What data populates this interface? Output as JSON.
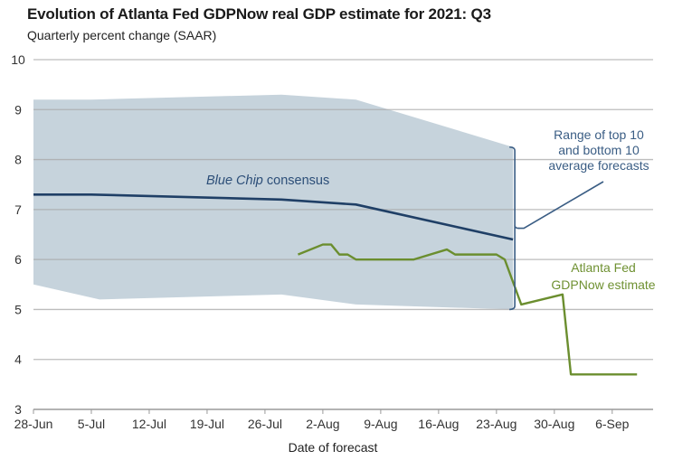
{
  "chart_data": {
    "type": "line",
    "title": "Evolution of Atlanta Fed GDPNow real GDP estimate for 2021: Q3",
    "subtitle": "Quarterly percent change (SAAR)",
    "xlabel": "Date of forecast",
    "ylabel": "",
    "ylim": [
      3,
      10
    ],
    "yticks": [
      3,
      4,
      5,
      6,
      7,
      8,
      9,
      10
    ],
    "xlim_days": [
      0,
      75
    ],
    "xticks": [
      {
        "label": "28-Jun",
        "day": 0
      },
      {
        "label": "5-Jul",
        "day": 7
      },
      {
        "label": "12-Jul",
        "day": 14
      },
      {
        "label": "19-Jul",
        "day": 21
      },
      {
        "label": "26-Jul",
        "day": 28
      },
      {
        "label": "2-Aug",
        "day": 35
      },
      {
        "label": "9-Aug",
        "day": 42
      },
      {
        "label": "16-Aug",
        "day": 49
      },
      {
        "label": "23-Aug",
        "day": 56
      },
      {
        "label": "30-Aug",
        "day": 63
      },
      {
        "label": "6-Sep",
        "day": 70
      }
    ],
    "grid": true,
    "x_unit_note": "day = days since 28-Jun-2021",
    "band": {
      "name": "Range of top 10 and bottom 10 average forecasts",
      "color": "#c6d3dc",
      "upper": [
        {
          "day": 0,
          "value": 9.2
        },
        {
          "day": 7,
          "value": 9.2
        },
        {
          "day": 30,
          "value": 9.3
        },
        {
          "day": 39,
          "value": 9.2
        },
        {
          "day": 58,
          "value": 8.25
        }
      ],
      "lower": [
        {
          "day": 0,
          "value": 5.5
        },
        {
          "day": 8,
          "value": 5.2
        },
        {
          "day": 30,
          "value": 5.3
        },
        {
          "day": 39,
          "value": 5.1
        },
        {
          "day": 58,
          "value": 5.0
        }
      ]
    },
    "series": [
      {
        "name": "Blue Chip consensus",
        "color": "#1f3f66",
        "points": [
          {
            "day": 0,
            "value": 7.3
          },
          {
            "day": 7,
            "value": 7.3
          },
          {
            "day": 30,
            "value": 7.2
          },
          {
            "day": 39,
            "value": 7.1
          },
          {
            "day": 58,
            "value": 6.4
          }
        ]
      },
      {
        "name": "Atlanta Fed GDPNow estimate",
        "color": "#6b8e2f",
        "points": [
          {
            "day": 32,
            "value": 6.1
          },
          {
            "day": 35,
            "value": 6.3
          },
          {
            "day": 36,
            "value": 6.3
          },
          {
            "day": 37,
            "value": 6.1
          },
          {
            "day": 38,
            "value": 6.1
          },
          {
            "day": 39,
            "value": 6.0
          },
          {
            "day": 46,
            "value": 6.0
          },
          {
            "day": 50,
            "value": 6.2
          },
          {
            "day": 51,
            "value": 6.1
          },
          {
            "day": 56,
            "value": 6.1
          },
          {
            "day": 57,
            "value": 6.0
          },
          {
            "day": 59,
            "value": 5.1
          },
          {
            "day": 64,
            "value": 5.3
          },
          {
            "day": 65,
            "value": 3.7
          },
          {
            "day": 73,
            "value": 3.7
          }
        ]
      }
    ],
    "annotations": {
      "consensus_label_italic": "Blue Chip",
      "consensus_label_rest": " consensus",
      "range_label": [
        "Range of top 10",
        "and bottom 10",
        "average forecasts"
      ],
      "gdpnow_label": [
        "Atlanta Fed",
        "GDPNow estimate"
      ]
    }
  }
}
